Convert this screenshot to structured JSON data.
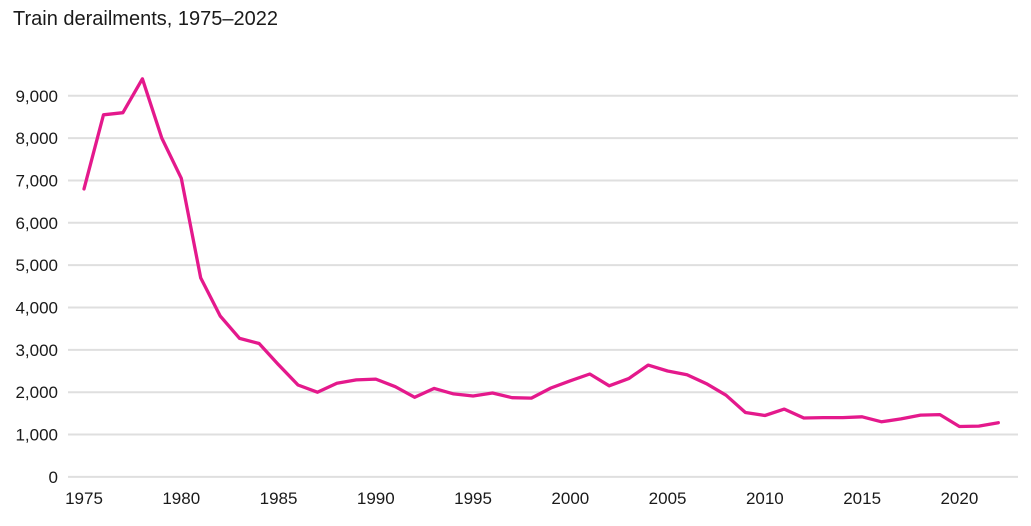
{
  "chart_data": {
    "type": "line",
    "title": "Train derailments, 1975–2022",
    "xlabel": "",
    "ylabel": "",
    "x": [
      1975,
      1976,
      1977,
      1978,
      1979,
      1980,
      1981,
      1982,
      1983,
      1984,
      1985,
      1986,
      1987,
      1988,
      1989,
      1990,
      1991,
      1992,
      1993,
      1994,
      1995,
      1996,
      1997,
      1998,
      1999,
      2000,
      2001,
      2002,
      2003,
      2004,
      2005,
      2006,
      2007,
      2008,
      2009,
      2010,
      2011,
      2012,
      2013,
      2014,
      2015,
      2016,
      2017,
      2018,
      2019,
      2020,
      2021,
      2022
    ],
    "series": [
      {
        "name": "Train derailments",
        "values": [
          6800,
          8550,
          8600,
          9400,
          8000,
          7050,
          4700,
          3800,
          3270,
          3150,
          2650,
          2170,
          2000,
          2210,
          2290,
          2310,
          2130,
          1880,
          2090,
          1960,
          1910,
          1980,
          1870,
          1860,
          2100,
          2270,
          2430,
          2150,
          2320,
          2640,
          2500,
          2410,
          2200,
          1930,
          1520,
          1450,
          1600,
          1390,
          1400,
          1400,
          1420,
          1300,
          1370,
          1460,
          1470,
          1190,
          1200,
          1280
        ]
      }
    ],
    "xlim": [
      1975,
      2022
    ],
    "ylim": [
      0,
      9000
    ],
    "ytick_interval": 1000,
    "ytick_labels": [
      "0",
      "1,000",
      "2,000",
      "3,000",
      "4,000",
      "5,000",
      "6,000",
      "7,000",
      "8,000",
      "9,000"
    ],
    "xticks": [
      1975,
      1980,
      1985,
      1990,
      1995,
      2000,
      2005,
      2010,
      2015,
      2020
    ],
    "xtick_labels": [
      "1975",
      "1980",
      "1985",
      "1990",
      "1995",
      "2000",
      "2005",
      "2010",
      "2015",
      "2020"
    ],
    "grid": "horizontal",
    "legend": "none"
  },
  "colors": {
    "line": "#e4198c",
    "grid": "#dfdfdf",
    "axis_text": "#1a1a1a",
    "background": "#ffffff"
  }
}
